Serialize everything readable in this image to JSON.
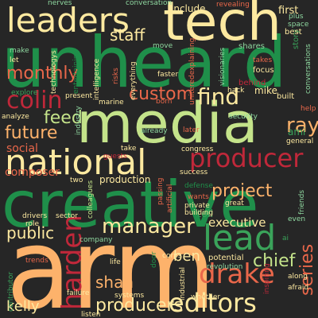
{
  "colors": {
    "background": "#262626",
    "dark_green": "#1f8f4a",
    "light_green": "#c4e38a",
    "orange": "#fdb26b",
    "peach": "#f7a97a",
    "salmon": "#e9674a",
    "red": "#c0283a",
    "dark_red": "#8e1f2e",
    "pale_yellow": "#fde9a0",
    "mint": "#8fd8a0",
    "mid_green": "#3aa35a"
  },
  "words": [
    {
      "text": "arm",
      "color": "orange"
    },
    {
      "text": "creative",
      "color": "dark_green"
    },
    {
      "text": "media",
      "color": "light_green"
    },
    {
      "text": "unheard",
      "color": "dark_green"
    },
    {
      "text": "tech",
      "color": "pale_yellow"
    },
    {
      "text": "national",
      "color": "pale_yellow"
    },
    {
      "text": "leaders",
      "color": "pale_yellow"
    },
    {
      "text": "producer",
      "color": "red"
    },
    {
      "text": "lead",
      "color": "mid_green"
    },
    {
      "text": "drake",
      "color": "salmon"
    },
    {
      "text": "editors",
      "color": "pale_yellow"
    },
    {
      "text": "harden",
      "color": "red"
    },
    {
      "text": "manager",
      "color": "pale_yellow"
    },
    {
      "text": "colin",
      "color": "red"
    },
    {
      "text": "find",
      "color": "pale_yellow"
    },
    {
      "text": "custom",
      "color": "salmon"
    },
    {
      "text": "project",
      "color": "orange"
    },
    {
      "text": "monthly",
      "color": "salmon"
    },
    {
      "text": "feed",
      "color": "light_green"
    },
    {
      "text": "future",
      "color": "orange"
    },
    {
      "text": "producers",
      "color": "pale_yellow"
    },
    {
      "text": "chief",
      "color": "light_green"
    },
    {
      "text": "series",
      "color": "salmon"
    },
    {
      "text": "ray",
      "color": "orange"
    },
    {
      "text": "staff",
      "color": "pale_yellow"
    },
    {
      "text": "public",
      "color": "pale_yellow"
    },
    {
      "text": "kelly",
      "color": "pale_yellow"
    },
    {
      "text": "shah",
      "color": "orange"
    },
    {
      "text": "executive",
      "color": "pale_yellow"
    },
    {
      "text": "ben",
      "color": "pale_yellow"
    },
    {
      "text": "social",
      "color": "salmon"
    },
    {
      "text": "composer",
      "color": "salmon"
    },
    {
      "text": "toll",
      "color": "mid_green"
    },
    {
      "text": "include",
      "color": "pale_yellow"
    },
    {
      "text": "production",
      "color": "pale_yellow"
    },
    {
      "text": "first",
      "color": "pale_yellow"
    },
    {
      "text": "mike",
      "color": "pale_yellow"
    },
    {
      "text": "nerves",
      "color": "mint"
    },
    {
      "text": "conversation",
      "color": "mint"
    },
    {
      "text": "revealing",
      "color": "salmon"
    },
    {
      "text": "shares",
      "color": "mint"
    },
    {
      "text": "story",
      "color": "mid_green"
    },
    {
      "text": "plus",
      "color": "mint"
    },
    {
      "text": "space",
      "color": "mint"
    },
    {
      "text": "best",
      "color": "pale_yellow"
    },
    {
      "text": "conversations",
      "color": "mint"
    },
    {
      "text": "make",
      "color": "mint"
    },
    {
      "text": "let",
      "color": "pale_yellow"
    },
    {
      "text": "technologys",
      "color": "pale_yellow"
    },
    {
      "text": "entertaining",
      "color": "dark_green"
    },
    {
      "text": "intelligence",
      "color": "pale_yellow"
    },
    {
      "text": "risks",
      "color": "salmon"
    },
    {
      "text": "everything",
      "color": "pale_yellow"
    },
    {
      "text": "move",
      "color": "mint"
    },
    {
      "text": "faster",
      "color": "pale_yellow"
    },
    {
      "text": "uniteredexplaining",
      "color": "salmon"
    },
    {
      "text": "visionaries",
      "color": "mint"
    },
    {
      "text": "takes",
      "color": "salmon"
    },
    {
      "text": "focus",
      "color": "pale_yellow"
    },
    {
      "text": "behind",
      "color": "red"
    },
    {
      "text": "explore",
      "color": "mid_green"
    },
    {
      "text": "present",
      "color": "pale_yellow"
    },
    {
      "text": "born",
      "color": "salmon"
    },
    {
      "text": "hack",
      "color": "pale_yellow"
    },
    {
      "text": "built",
      "color": "pale_yellow"
    },
    {
      "text": "marine",
      "color": "pale_yellow"
    },
    {
      "text": "help",
      "color": "salmon"
    },
    {
      "text": "already",
      "color": "mint"
    },
    {
      "text": "security",
      "color": "mint"
    },
    {
      "text": "ami",
      "color": "mid_green"
    },
    {
      "text": "general",
      "color": "pale_yellow"
    },
    {
      "text": "analyze",
      "color": "pale_yellow"
    },
    {
      "text": "industry",
      "color": "mint"
    },
    {
      "text": "later",
      "color": "salmon"
    },
    {
      "text": "take",
      "color": "pale_yellow"
    },
    {
      "text": "congress",
      "color": "pale_yellow"
    },
    {
      "text": "guests",
      "color": "red"
    },
    {
      "text": "defense",
      "color": "dark_green"
    },
    {
      "text": "success",
      "color": "pale_yellow"
    },
    {
      "text": "two",
      "color": "pale_yellow"
    },
    {
      "text": "wants",
      "color": "salmon"
    },
    {
      "text": "drivers",
      "color": "pale_yellow"
    },
    {
      "text": "sector",
      "color": "pale_yellow"
    },
    {
      "text": "role",
      "color": "pale_yellow"
    },
    {
      "text": "colleagues",
      "color": "light_green"
    },
    {
      "text": "artificial",
      "color": "salmon"
    },
    {
      "text": "private",
      "color": "pale_yellow"
    },
    {
      "text": "building",
      "color": "pale_yellow"
    },
    {
      "text": "great",
      "color": "pale_yellow"
    },
    {
      "text": "friends",
      "color": "mint"
    },
    {
      "text": "even",
      "color": "mint"
    },
    {
      "text": "passing",
      "color": "salmon"
    },
    {
      "text": "company",
      "color": "mint"
    },
    {
      "text": "trends",
      "color": "salmon"
    },
    {
      "text": "life",
      "color": "pale_yellow"
    },
    {
      "text": "door",
      "color": "dark_green"
    },
    {
      "text": "corps",
      "color": "pale_yellow"
    },
    {
      "text": "potential",
      "color": "pale_yellow"
    },
    {
      "text": "revolution",
      "color": "mint"
    },
    {
      "text": "industrial",
      "color": "pale_yellow"
    },
    {
      "text": "along",
      "color": "pale_yellow"
    },
    {
      "text": "afraid",
      "color": "pale_yellow"
    },
    {
      "text": "whether",
      "color": "pale_yellow"
    },
    {
      "text": "inspiring",
      "color": "red"
    },
    {
      "text": "contributor",
      "color": "mid_green"
    },
    {
      "text": "failure",
      "color": "pale_yellow"
    },
    {
      "text": "systems",
      "color": "pale_yellow"
    },
    {
      "text": "listen",
      "color": "pale_yellow"
    },
    {
      "text": "ai",
      "color": "mid_green"
    }
  ]
}
